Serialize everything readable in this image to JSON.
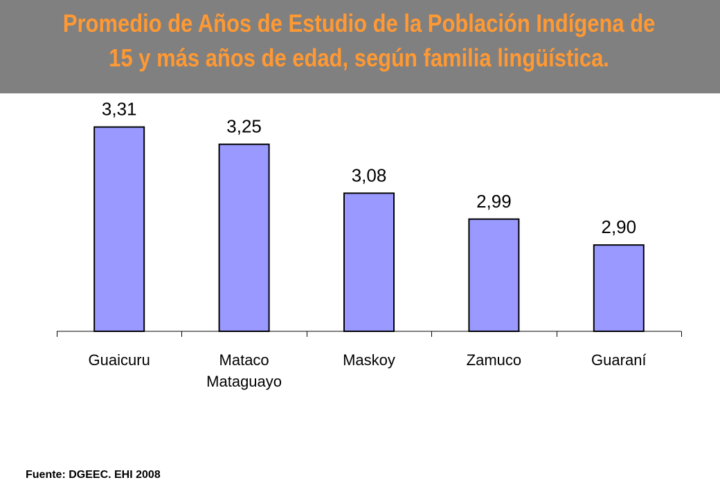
{
  "colors": {
    "header_bg": "#808080",
    "title": "#FF9933",
    "bar_fill": "#9999FF",
    "bar_stroke": "#000000"
  },
  "header": {
    "title_line1": "Promedio de Años de Estudio de la Población Indígena de",
    "title_line2": "15 y más años de edad, según familia lingüística."
  },
  "chart_data": {
    "type": "bar",
    "categories": [
      [
        "Guaicuru"
      ],
      [
        "Mataco",
        "Mataguayo"
      ],
      [
        "Maskoy"
      ],
      [
        "Zamuco"
      ],
      [
        "Guaraní"
      ]
    ],
    "values": [
      3.31,
      3.25,
      3.08,
      2.99,
      2.9
    ],
    "data_labels": [
      "3,31",
      "3,25",
      "3,08",
      "2,99",
      "2,90"
    ],
    "ylim": [
      2.6,
      3.4
    ],
    "grid": false,
    "legend": "none"
  },
  "footer": {
    "source": "Fuente: DGEEC. EHI 2008"
  }
}
